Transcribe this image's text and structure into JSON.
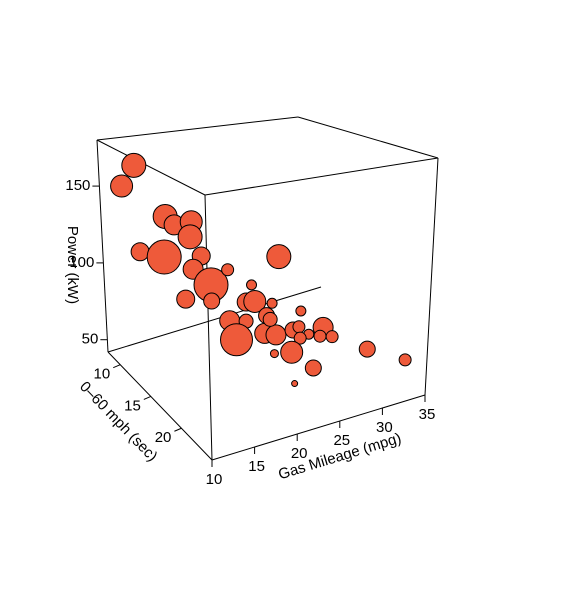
{
  "chart_data": {
    "type": "scatter3d",
    "xlabel": "Gas Mileage (mpg)",
    "ylabel": "0–60 mph (sec)",
    "zlabel": "Power (kW)",
    "color": "#ee5a3a",
    "xlim": [
      10,
      35
    ],
    "xticks": [
      10,
      15,
      20,
      25,
      30,
      35
    ],
    "ylim": [
      8,
      25
    ],
    "yticks": [
      10,
      15,
      20
    ],
    "zlim": [
      42,
      180
    ],
    "zticks": [
      50,
      100,
      150
    ],
    "x": [
      12.8,
      11.2,
      13,
      12.5,
      13.5,
      15.5,
      15.3,
      12.2,
      16.5,
      15.5,
      17.5,
      19.5,
      14.5,
      17.5,
      25.5,
      21.5,
      22.5,
      24.5,
      19.5,
      21.4,
      23.8,
      27.8,
      20.2,
      23.5,
      24.8,
      26.8,
      27.5,
      30.3,
      31.3,
      25,
      26.3,
      24,
      23,
      21,
      25.5,
      23.3,
      31.8,
      34,
      22.2,
      24.2
    ],
    "y": [
      10,
      10,
      10,
      15,
      15,
      15,
      15,
      15,
      15,
      15,
      15,
      15,
      15,
      15,
      15,
      15,
      15,
      15,
      15,
      15,
      15,
      15,
      15,
      15,
      15,
      15,
      15,
      15,
      15,
      20,
      20,
      20,
      20,
      20,
      20,
      20,
      20,
      23,
      15,
      15
    ],
    "z": [
      166,
      154,
      110,
      146,
      140,
      140,
      131,
      122,
      118,
      111,
      99,
      106,
      94,
      89,
      107,
      83,
      82,
      78,
      74,
      71,
      71,
      68,
      61,
      60,
      57,
      57,
      58,
      53,
      45,
      75,
      72,
      74,
      67,
      69,
      54,
      48,
      56,
      57,
      93,
      68
    ],
    "sizes": [
      12,
      11,
      9,
      12,
      10,
      11,
      12,
      17,
      9,
      10,
      17,
      6,
      9,
      8,
      12,
      9,
      11,
      5,
      10,
      7,
      8,
      5,
      16,
      10,
      10,
      8,
      6,
      10,
      6,
      5,
      6,
      6,
      11,
      4,
      8,
      3,
      8,
      6,
      5,
      7
    ]
  }
}
